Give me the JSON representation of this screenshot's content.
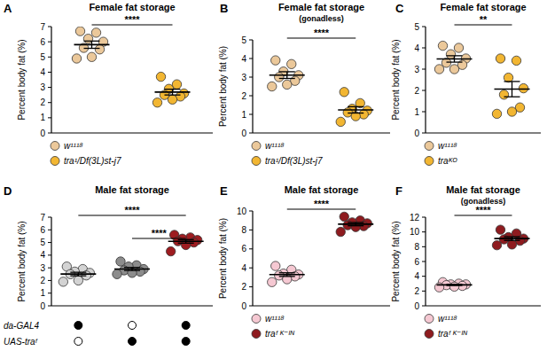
{
  "chart_data": [
    {
      "panel": "A",
      "type": "dot",
      "title": "Female fat storage",
      "y_label": "Percent body fat (%)",
      "ylim": [
        0,
        7
      ],
      "yticks": [
        0,
        1,
        2,
        3,
        4,
        5,
        6,
        7
      ],
      "series": [
        {
          "name": "w¹¹¹⁸",
          "color": "#ebc89a",
          "values": [
            6.7,
            6.6,
            6.2,
            6.0,
            5.6,
            5.5,
            5.0,
            4.9
          ],
          "mean": 5.81,
          "sem": 0.24
        },
        {
          "name": "tra¹/Df(3L)st-j7",
          "color": "#f2b632",
          "values": [
            3.7,
            3.2,
            2.9,
            2.6,
            2.5,
            2.4,
            2.2,
            2.0
          ],
          "mean": 2.69,
          "sem": 0.19
        }
      ],
      "annotations": [
        {
          "text": "****",
          "from": 0,
          "to": 1
        }
      ]
    },
    {
      "panel": "B",
      "type": "dot",
      "title": "Female fat storage",
      "subtitle": "(gonadless)",
      "y_label": "Percent body fat (%)",
      "ylim": [
        0,
        5
      ],
      "yticks": [
        0,
        1,
        2,
        3,
        4,
        5
      ],
      "series": [
        {
          "name": "w¹¹¹⁸",
          "color": "#ebc89a",
          "values": [
            3.9,
            3.7,
            3.3,
            3.1,
            3.0,
            2.8,
            2.6,
            2.5
          ],
          "mean": 3.11,
          "sem": 0.18
        },
        {
          "name": "tra¹/Df(3L)st-j7",
          "color": "#f2b632",
          "values": [
            2.2,
            1.6,
            1.3,
            1.2,
            1.1,
            1.0,
            0.9,
            0.6
          ],
          "mean": 1.24,
          "sem": 0.17
        }
      ],
      "annotations": [
        {
          "text": "****",
          "from": 0,
          "to": 1
        }
      ]
    },
    {
      "panel": "C",
      "type": "dot",
      "title": "Female fat storage",
      "y_label": "Percent body fat (%)",
      "ylim": [
        0,
        5
      ],
      "yticks": [
        0,
        1,
        2,
        3,
        4,
        5
      ],
      "series": [
        {
          "name": "w¹¹¹⁸",
          "color": "#ebc89a",
          "values": [
            4.1,
            4.0,
            3.7,
            3.5,
            3.3,
            3.2,
            3.0,
            3.0
          ],
          "mean": 3.48,
          "sem": 0.15
        },
        {
          "name": "traᴷᴼ",
          "color": "#f2b632",
          "values": [
            3.5,
            3.4,
            2.6,
            2.1,
            1.8,
            1.2,
            1.0,
            0.9
          ],
          "mean": 2.06,
          "sem": 0.36
        }
      ],
      "annotations": [
        {
          "text": "**",
          "from": 0,
          "to": 1
        }
      ]
    },
    {
      "panel": "D",
      "type": "dot",
      "title": "Male fat storage",
      "y_label": "Percent body fat (%)",
      "ylim": [
        0,
        7
      ],
      "yticks": [
        0,
        1,
        2,
        3,
        4,
        5,
        6,
        7
      ],
      "series": [
        {
          "color": "#d3d3d3",
          "values": [
            3.1,
            2.9,
            2.7,
            2.6,
            2.5,
            2.4,
            2.0,
            1.9
          ],
          "mean": 2.51,
          "sem": 0.14
        },
        {
          "color": "#8c8c8c",
          "values": [
            3.5,
            3.2,
            3.1,
            2.9,
            2.8,
            2.7,
            2.6,
            2.5
          ],
          "mean": 2.91,
          "sem": 0.12
        },
        {
          "color": "#9e1c20",
          "values": [
            5.6,
            5.4,
            5.3,
            5.2,
            5.1,
            5.0,
            4.8,
            4.3
          ],
          "mean": 5.09,
          "sem": 0.14
        }
      ],
      "annotations": [
        {
          "text": "****",
          "from": 0,
          "to": 2
        },
        {
          "text": "****",
          "from": 1,
          "to": 2
        }
      ],
      "genotype_rows": [
        {
          "label": "da-GAL4",
          "present": [
            true,
            false,
            true
          ]
        },
        {
          "label": "UAS-traᶠ",
          "present": [
            false,
            true,
            true
          ]
        }
      ]
    },
    {
      "panel": "E",
      "type": "dot",
      "title": "Male fat storage",
      "y_label": "Percent body fat (%)",
      "ylim": [
        0,
        10
      ],
      "yticks": [
        0,
        2,
        4,
        6,
        8,
        10
      ],
      "series": [
        {
          "name": "w¹¹¹⁸",
          "color": "#f5c8d2",
          "values": [
            4.2,
            3.8,
            3.4,
            3.3,
            3.2,
            3.1,
            2.8,
            2.5
          ],
          "mean": 3.29,
          "sem": 0.19
        },
        {
          "name": "traᶠ ᴷ⁻ᴵᴺ",
          "color": "#8e1b1f",
          "values": [
            9.4,
            9.0,
            8.8,
            8.7,
            8.5,
            8.4,
            8.3,
            7.8
          ],
          "mean": 8.61,
          "sem": 0.17
        }
      ],
      "annotations": [
        {
          "text": "****",
          "from": 0,
          "to": 1
        }
      ]
    },
    {
      "panel": "F",
      "type": "dot",
      "title": "Male fat storage",
      "subtitle": "(gonadless)",
      "y_label": "Percent body fat (%)",
      "ylim": [
        0,
        12
      ],
      "yticks": [
        0,
        2,
        4,
        6,
        8,
        10,
        12
      ],
      "series": [
        {
          "name": "w¹¹¹⁸",
          "color": "#f5c8d2",
          "values": [
            3.2,
            3.0,
            2.9,
            2.9,
            2.8,
            2.7,
            2.6,
            2.5
          ],
          "mean": 2.83,
          "sem": 0.08
        },
        {
          "name": "traᶠ ᴷ⁻ᴵᴺ",
          "color": "#8e1b1f",
          "values": [
            10.3,
            9.8,
            9.3,
            9.1,
            9.0,
            8.8,
            8.3,
            8.2
          ],
          "mean": 9.1,
          "sem": 0.25
        }
      ],
      "annotations": [
        {
          "text": "****",
          "from": 0,
          "to": 1
        }
      ]
    }
  ]
}
